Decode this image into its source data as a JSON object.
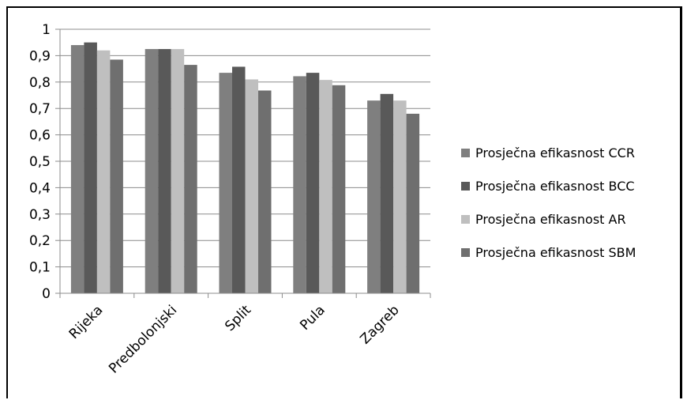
{
  "chart_data": {
    "type": "bar",
    "categories": [
      "Rijeka",
      "Predbolonjski",
      "Split",
      "Pula",
      "Zagreb"
    ],
    "series": [
      {
        "name": "Prosječna efikasnost CCR",
        "color": "#7f7f7f",
        "values": [
          0.94,
          0.925,
          0.835,
          0.822,
          0.73
        ]
      },
      {
        "name": "Prosječna efikasnost BCC",
        "color": "#595959",
        "values": [
          0.95,
          0.925,
          0.858,
          0.835,
          0.755
        ]
      },
      {
        "name": "Prosječna efikasnost AR",
        "color": "#bfbfbf",
        "values": [
          0.92,
          0.925,
          0.81,
          0.808,
          0.73
        ]
      },
      {
        "name": "Prosječna efikasnost SBM",
        "color": "#6f6f6f",
        "values": [
          0.885,
          0.865,
          0.768,
          0.788,
          0.68
        ]
      }
    ],
    "y_ticks": [
      "0",
      "0,1",
      "0,2",
      "0,3",
      "0,4",
      "0,5",
      "0,6",
      "0,7",
      "0,8",
      "0,9",
      "1"
    ],
    "ylim": [
      0,
      1
    ],
    "grid": true,
    "legend_position": "right"
  }
}
